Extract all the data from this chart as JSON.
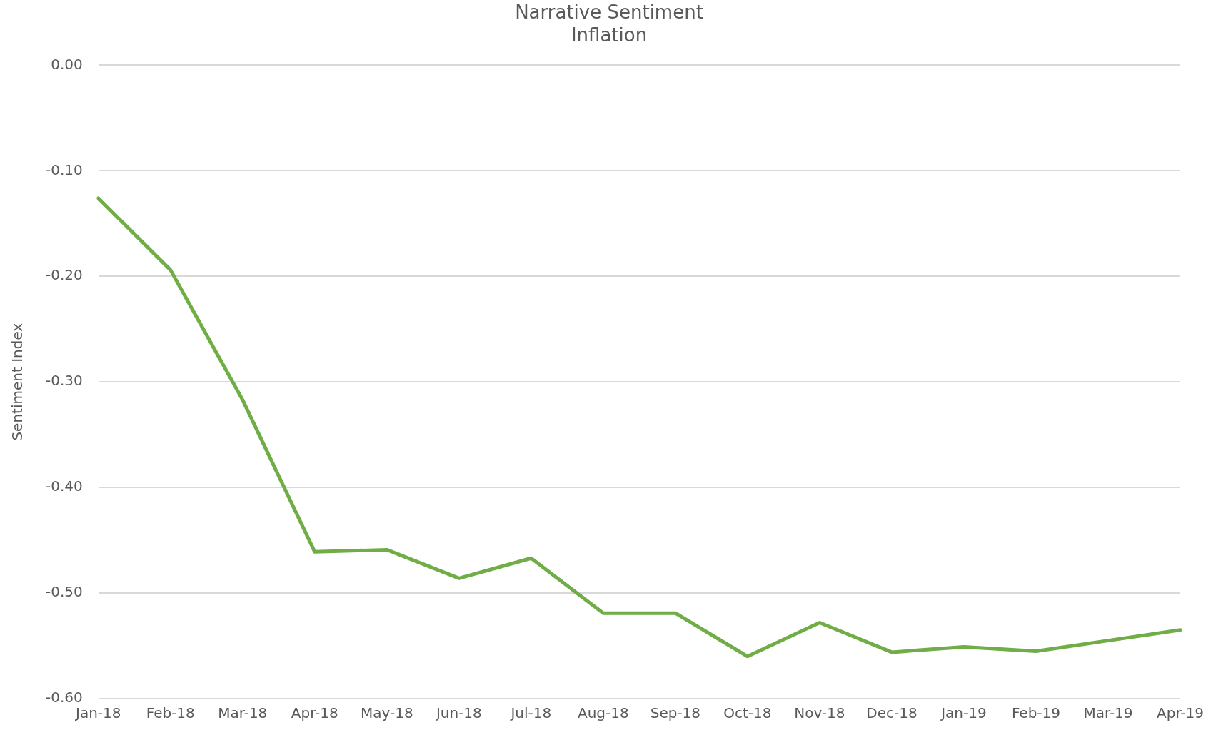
{
  "chart_data": {
    "type": "line",
    "title": "Narrative Sentiment\nInflation",
    "ylabel": "Sentiment Index",
    "categories": [
      "Jan-18",
      "Feb-18",
      "Mar-18",
      "Apr-18",
      "May-18",
      "Jun-18",
      "Jul-18",
      "Aug-18",
      "Sep-18",
      "Oct-18",
      "Nov-18",
      "Dec-18",
      "Jan-19",
      "Feb-19",
      "Mar-19",
      "Apr-19"
    ],
    "series": [
      {
        "color": "#70ad47",
        "values": [
          -0.126,
          -0.194,
          -0.317,
          -0.461,
          -0.459,
          -0.486,
          -0.467,
          -0.519,
          -0.519,
          -0.56,
          -0.528,
          -0.556,
          -0.551,
          -0.555,
          -0.545,
          -0.535
        ]
      }
    ],
    "ylim": [
      -0.6,
      0
    ],
    "yticks": [
      {
        "value": -0.6,
        "label": "-0.60"
      },
      {
        "value": -0.5,
        "label": "-0.50"
      },
      {
        "value": -0.4,
        "label": "-0.40"
      },
      {
        "value": -0.3,
        "label": "-0.30"
      },
      {
        "value": -0.2,
        "label": "-0.20"
      },
      {
        "value": -0.1,
        "label": "-0.10"
      },
      {
        "value": 0,
        "label": "0.00"
      }
    ],
    "grid": "y",
    "legend": false,
    "marker": "none",
    "line_style": "solid"
  }
}
